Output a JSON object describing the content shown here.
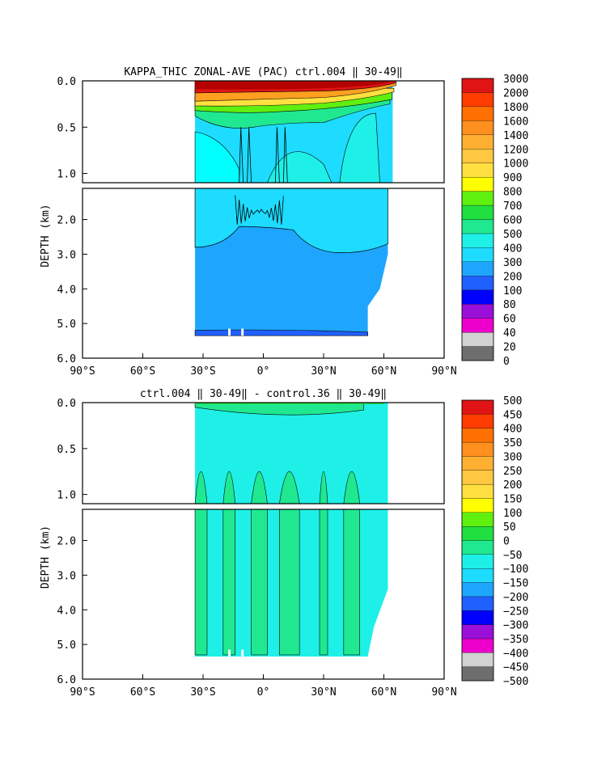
{
  "chart_data": [
    {
      "type": "heatmap",
      "title": "KAPPA_THIC ZONAL-AVE (PAC) ctrl.004 ‖ 30-49‖",
      "ylabel": "DEPTH (km)",
      "x_ticks": [
        "90°S",
        "60°S",
        "30°S",
        "0°",
        "30°N",
        "60°N",
        "90°N"
      ],
      "y_ticks_upper": [
        "0.0",
        "0.5",
        "1.0"
      ],
      "y_ticks_lower": [
        "2.0",
        "3.0",
        "4.0",
        "5.0",
        "6.0"
      ],
      "x_range": [
        -90,
        90
      ],
      "y_range_upper": [
        0.0,
        1.1
      ],
      "y_range_lower": [
        1.1,
        6.0
      ],
      "data_extent": {
        "lat_south": -34,
        "lat_north_surface": 66,
        "lat_north_deep": 52,
        "max_depth_km": 5.35
      },
      "levels": [
        0,
        20,
        40,
        60,
        80,
        100,
        200,
        300,
        400,
        500,
        600,
        700,
        800,
        900,
        1000,
        1200,
        1400,
        1600,
        1800,
        2000,
        3000
      ],
      "level_labels": [
        "3000",
        "2000",
        "1800",
        "1600",
        "1400",
        "1200",
        "1000",
        "900",
        "800",
        "700",
        "600",
        "500",
        "400",
        "300",
        "200",
        "100",
        "80",
        "60",
        "40",
        "20",
        "0"
      ],
      "colors": [
        "#6e6e6e",
        "#d2d2d2",
        "#ee00cc",
        "#9a10d8",
        "#0000ff",
        "#2060ff",
        "#1ea6ff",
        "#1edcff",
        "#1ef0e8",
        "#20e890",
        "#20e040",
        "#60f010",
        "#ffff00",
        "#ffe040",
        "#ffc840",
        "#ffb030",
        "#ff9020",
        "#ff7000",
        "#ff3c00",
        "#e01414"
      ],
      "regions": [
        {
          "name": "surface",
          "depth_km": [
            0.0,
            0.1
          ],
          "value_range": [
            2000,
            3000
          ],
          "color": "#c00000"
        },
        {
          "name": "thermocline",
          "depth_km": [
            0.1,
            0.3
          ],
          "value_range": [
            800,
            1800
          ],
          "color": "#ffa020"
        },
        {
          "name": "intermediate",
          "depth_km": [
            0.3,
            1.1
          ],
          "value_range": [
            400,
            600
          ],
          "color": "#1ef0e8"
        },
        {
          "name": "upper-deep",
          "depth_km": [
            1.1,
            2.8
          ],
          "value_range": [
            400,
            500
          ],
          "color": "#1edcff"
        },
        {
          "name": "deep",
          "depth_km": [
            2.8,
            5.2
          ],
          "value_range": [
            200,
            400
          ],
          "color": "#1ea6ff"
        },
        {
          "name": "bottom",
          "depth_km": [
            5.2,
            5.35
          ],
          "value_range": [
            100,
            200
          ],
          "color": "#2060ff"
        }
      ]
    },
    {
      "type": "heatmap",
      "title": "ctrl.004 ‖ 30-49‖  -  control.36 ‖ 30-49‖",
      "ylabel": "DEPTH (km)",
      "x_ticks": [
        "90°S",
        "60°S",
        "30°S",
        "0°",
        "30°N",
        "60°N",
        "90°N"
      ],
      "y_ticks_upper": [
        "0.0",
        "0.5",
        "1.0"
      ],
      "y_ticks_lower": [
        "2.0",
        "3.0",
        "4.0",
        "5.0",
        "6.0"
      ],
      "x_range": [
        -90,
        90
      ],
      "y_range_upper": [
        0.0,
        1.1
      ],
      "y_range_lower": [
        1.1,
        6.0
      ],
      "data_extent": {
        "lat_south": -34,
        "lat_north_surface": 62,
        "lat_north_deep": 52,
        "max_depth_km": 5.35
      },
      "levels": [
        -500,
        -450,
        -400,
        -350,
        -300,
        -250,
        -200,
        -150,
        -100,
        -50,
        0,
        50,
        100,
        150,
        200,
        250,
        300,
        350,
        400,
        450,
        500
      ],
      "level_labels": [
        "500",
        "450",
        "400",
        "350",
        "300",
        "250",
        "200",
        "150",
        "100",
        "50",
        "0",
        "−50",
        "−100",
        "−150",
        "−200",
        "−250",
        "−300",
        "−350",
        "−400",
        "−450",
        "−500"
      ],
      "colors": [
        "#6e6e6e",
        "#d2d2d2",
        "#ee00cc",
        "#9a10d8",
        "#0000ff",
        "#2060ff",
        "#1ea6ff",
        "#1edcff",
        "#1ef0e8",
        "#20e890",
        "#20e040",
        "#60f010",
        "#ffff00",
        "#ffe040",
        "#ffc840",
        "#ffb030",
        "#ff9020",
        "#ff7000",
        "#ff3c00",
        "#e01414"
      ],
      "regions": [
        {
          "name": "background",
          "value_range": [
            -50,
            0
          ],
          "color": "#1ef0e8"
        },
        {
          "name": "positive-bands",
          "value_range": [
            0,
            50
          ],
          "color": "#20e890"
        }
      ]
    }
  ]
}
